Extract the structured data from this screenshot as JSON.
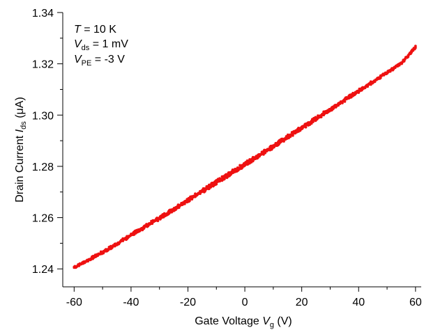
{
  "chart_data": {
    "type": "scatter",
    "xlabel": {
      "prefix": "Gate Voltage ",
      "symbol": "V",
      "subscript": "g",
      "suffix": " (V)"
    },
    "ylabel": {
      "prefix": "Drain Current ",
      "symbol": "I",
      "subscript": "ds",
      "suffix": " (μA)"
    },
    "xlim": [
      -64,
      62
    ],
    "ylim": [
      1.233,
      1.34
    ],
    "xticks": [
      "-60",
      "-40",
      "-20",
      "0",
      "20",
      "40",
      "60"
    ],
    "xtick_values": [
      -60,
      -40,
      -20,
      0,
      20,
      40,
      60
    ],
    "yticks": [
      "1.24",
      "1.26",
      "1.28",
      "1.30",
      "1.32",
      "1.34"
    ],
    "ytick_values": [
      1.24,
      1.26,
      1.28,
      1.3,
      1.32,
      1.34
    ],
    "grid": false,
    "legend": "none",
    "annotations": [
      {
        "symbol": "T",
        "subscript": "",
        "rest": " = 10 K"
      },
      {
        "symbol": "V",
        "subscript": "ds",
        "rest": " = 1 mV"
      },
      {
        "symbol": "V",
        "subscript": "PE",
        "rest": " = -3 V"
      }
    ],
    "color": "#ee1111",
    "series": [
      {
        "x": [
          -60,
          -55,
          -50,
          -45,
          -40,
          -35,
          -30,
          -25,
          -20,
          -15,
          -10,
          -5,
          0,
          5,
          10,
          15,
          20,
          25,
          30,
          35,
          40,
          45,
          50,
          55,
          60
        ],
        "y": [
          1.2405,
          1.2435,
          1.2465,
          1.2498,
          1.2532,
          1.2565,
          1.2598,
          1.2633,
          1.2668,
          1.2703,
          1.2738,
          1.2773,
          1.2808,
          1.2843,
          1.2878,
          1.2914,
          1.295,
          1.2986,
          1.3022,
          1.3058,
          1.3094,
          1.313,
          1.3166,
          1.3202,
          1.3265
        ]
      }
    ]
  }
}
